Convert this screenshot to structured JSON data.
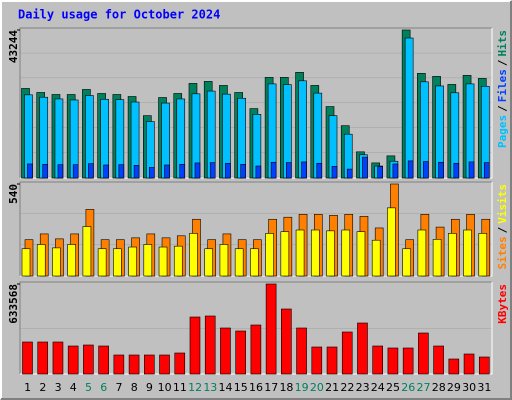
{
  "chart_data": [
    {
      "type": "bar",
      "title": "Daily usage for October 2024",
      "categories": [
        "1",
        "2",
        "3",
        "4",
        "5",
        "6",
        "7",
        "8",
        "9",
        "10",
        "11",
        "12",
        "13",
        "14",
        "15",
        "16",
        "17",
        "18",
        "19",
        "20",
        "21",
        "22",
        "23",
        "24",
        "25",
        "26",
        "27",
        "28",
        "29",
        "30",
        "31"
      ],
      "category_colors": [
        "#000000",
        "#000000",
        "#000000",
        "#000000",
        "#00805c",
        "#00805c",
        "#000000",
        "#000000",
        "#000000",
        "#000000",
        "#000000",
        "#00805c",
        "#00805c",
        "#000000",
        "#000000",
        "#000000",
        "#000000",
        "#000000",
        "#00805c",
        "#00805c",
        "#000000",
        "#000000",
        "#000000",
        "#000000",
        "#000000",
        "#00805c",
        "#00805c",
        "#000000",
        "#000000",
        "#000000",
        "#000000"
      ],
      "legend_separator": "/",
      "series": [
        {
          "name": "Hits",
          "color": "#00805c",
          "values": [
            26166,
            24990,
            24402,
            24402,
            25872,
            24696,
            24402,
            23814,
            18228,
            23520,
            24696,
            27636,
            28224,
            27048,
            24990,
            20286,
            29400,
            29400,
            30870,
            27048,
            20874,
            15288,
            7644,
            4410,
            6468,
            43244,
            30576,
            29694,
            27342,
            29988,
            29106
          ]
        },
        {
          "name": "Files",
          "color": "#0040ff",
          "values": [
            4100,
            4000,
            3900,
            3900,
            4200,
            3800,
            3900,
            3700,
            3100,
            3800,
            4000,
            4400,
            4500,
            4300,
            4000,
            3500,
            4600,
            4500,
            4700,
            4300,
            3400,
            2600,
            6100,
            3300,
            4100,
            5000,
            4800,
            4600,
            4300,
            4700,
            4500
          ]
        },
        {
          "name": "Pages",
          "color": "#00c0ff",
          "values": [
            24300,
            23600,
            23100,
            22800,
            24100,
            23000,
            22900,
            22200,
            16500,
            21900,
            23100,
            24600,
            25400,
            24500,
            23300,
            18600,
            27500,
            27300,
            28400,
            24800,
            18200,
            12800,
            6800,
            3500,
            4900,
            40900,
            28100,
            26900,
            24900,
            27500,
            26800
          ]
        }
      ],
      "ylim": [
        0,
        43244
      ],
      "yticks": [
        43244
      ]
    },
    {
      "type": "bar",
      "legend_separator": "/",
      "series": [
        {
          "name": "Visits",
          "color": "#ffff00",
          "values": [
            160,
            185,
            165,
            185,
            290,
            160,
            160,
            170,
            185,
            170,
            175,
            250,
            160,
            185,
            160,
            160,
            250,
            260,
            270,
            270,
            265,
            270,
            260,
            210,
            400,
            160,
            270,
            215,
            250,
            270,
            250
          ]
        },
        {
          "name": "Sites",
          "color": "#ff8000",
          "values": [
            213,
            247,
            218,
            247,
            391,
            213,
            213,
            224,
            247,
            224,
            236,
            333,
            213,
            247,
            213,
            213,
            333,
            345,
            362,
            362,
            356,
            362,
            350,
            282,
            540,
            213,
            362,
            287,
            333,
            362,
            333
          ]
        }
      ],
      "ylim": [
        0,
        540
      ],
      "yticks": [
        540
      ]
    },
    {
      "type": "bar",
      "series": [
        {
          "name": "KBytes",
          "color": "#ff0000",
          "values": [
            225269,
            225269,
            225269,
            197110,
            204150,
            197110,
            133753,
            133753,
            133753,
            133753,
            147833,
            401260,
            408299,
            323824,
            302705,
            344942,
            633568,
            457577,
            323824,
            190070,
            190070,
            295665,
            359022,
            197110,
            183031,
            183031,
            288626,
            197110,
            105595,
            140793,
            119674
          ]
        }
      ],
      "ylim": [
        0,
        633568
      ],
      "yticks": [
        633568
      ]
    }
  ]
}
